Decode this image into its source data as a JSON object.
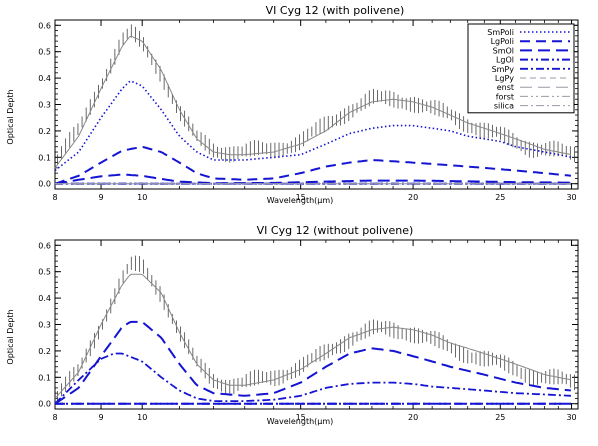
{
  "figure": {
    "panels": [
      {
        "title": "VI Cyg 12 (with polivene)",
        "xlabel": "Wavelength(μm)",
        "ylabel": "Optical Depth",
        "legend": [
          "SmPoli",
          "LgPoli",
          "SmOl",
          "LgOl",
          "SmPy",
          "LgPy",
          "enst",
          "forst",
          "silica"
        ]
      },
      {
        "title": "VI Cyg 12 (without polivene)",
        "xlabel": "Wavelength(μm)",
        "ylabel": "Optical Depth"
      }
    ]
  },
  "colors": {
    "axes": "#000000",
    "observed": "#444444",
    "model_total": "#888888",
    "components": "#1414d2",
    "minor_components": "#9a9aa8"
  },
  "chart_data": [
    {
      "type": "line",
      "title": "VI Cyg 12 (with polivene)",
      "xlabel": "Wavelength(μm)",
      "ylabel": "Optical Depth",
      "xscale": "log",
      "xlim": [
        8,
        30.5
      ],
      "ylim": [
        -0.02,
        0.62
      ],
      "xticks": [
        8,
        9,
        10,
        15,
        20,
        25,
        30
      ],
      "yticks": [
        0.0,
        0.1,
        0.2,
        0.3,
        0.4,
        0.5,
        0.6
      ],
      "grid": false,
      "legend_position": "top-right",
      "observed": {
        "x": [
          8,
          8.5,
          9,
          9.5,
          9.7,
          10,
          10.5,
          11,
          11.5,
          12,
          12.5,
          13,
          14,
          15,
          16,
          17,
          18,
          19,
          20,
          21,
          22,
          23,
          24,
          25,
          26,
          27,
          28,
          29,
          30
        ],
        "y": [
          0.08,
          0.2,
          0.38,
          0.54,
          0.57,
          0.53,
          0.42,
          0.27,
          0.17,
          0.13,
          0.12,
          0.12,
          0.13,
          0.16,
          0.22,
          0.28,
          0.32,
          0.32,
          0.31,
          0.28,
          0.26,
          0.23,
          0.2,
          0.18,
          0.16,
          0.14,
          0.13,
          0.12,
          0.11
        ],
        "error": 0.03
      },
      "series": [
        {
          "name": "total",
          "x": [
            8,
            8.5,
            9,
            9.5,
            9.7,
            10,
            10.5,
            11,
            11.5,
            12,
            12.5,
            13,
            14,
            15,
            16,
            17,
            18,
            19,
            20,
            21,
            22,
            23,
            24,
            25,
            26,
            27,
            28,
            29,
            30
          ],
          "values": [
            0.06,
            0.18,
            0.36,
            0.52,
            0.56,
            0.54,
            0.43,
            0.28,
            0.17,
            0.12,
            0.11,
            0.11,
            0.12,
            0.15,
            0.2,
            0.27,
            0.31,
            0.32,
            0.31,
            0.29,
            0.26,
            0.23,
            0.21,
            0.19,
            0.17,
            0.15,
            0.13,
            0.12,
            0.11
          ]
        },
        {
          "name": "SmPoli",
          "x": [
            8,
            8.5,
            9,
            9.5,
            9.7,
            10,
            10.5,
            11,
            11.5,
            12,
            12.5,
            13,
            14,
            15,
            16,
            17,
            18,
            19,
            20,
            21,
            22,
            23,
            24,
            25,
            26,
            27,
            28,
            29,
            30
          ],
          "values": [
            0.05,
            0.12,
            0.25,
            0.36,
            0.39,
            0.37,
            0.28,
            0.18,
            0.12,
            0.09,
            0.09,
            0.09,
            0.1,
            0.11,
            0.15,
            0.19,
            0.21,
            0.22,
            0.22,
            0.21,
            0.2,
            0.18,
            0.17,
            0.16,
            0.14,
            0.13,
            0.12,
            0.11,
            0.1
          ]
        },
        {
          "name": "LgPoli",
          "x": [
            8,
            8.5,
            9,
            9.5,
            10,
            10.5,
            11,
            11.5,
            12,
            13,
            14,
            15,
            16,
            17,
            18,
            19,
            20,
            22,
            24,
            26,
            28,
            30
          ],
          "values": [
            0.0,
            0.03,
            0.08,
            0.125,
            0.14,
            0.12,
            0.08,
            0.04,
            0.02,
            0.015,
            0.02,
            0.04,
            0.065,
            0.08,
            0.09,
            0.085,
            0.08,
            0.07,
            0.06,
            0.05,
            0.04,
            0.03
          ]
        },
        {
          "name": "SmOl",
          "x": [
            8,
            8.5,
            9,
            9.5,
            10,
            10.5,
            11,
            12,
            14,
            16,
            18,
            20,
            22,
            24,
            26,
            28,
            30
          ],
          "values": [
            0.0,
            0.015,
            0.028,
            0.035,
            0.03,
            0.018,
            0.008,
            0.002,
            0.003,
            0.008,
            0.012,
            0.012,
            0.01,
            0.008,
            0.006,
            0.005,
            0.004
          ]
        },
        {
          "name": "LgOl",
          "x": [
            8,
            30
          ],
          "values": [
            0.0,
            0.0
          ]
        },
        {
          "name": "SmPy",
          "x": [
            8,
            30
          ],
          "values": [
            0.0,
            0.0
          ]
        },
        {
          "name": "LgPy",
          "x": [
            8,
            30
          ],
          "values": [
            0.0,
            0.0
          ]
        },
        {
          "name": "enst",
          "x": [
            8,
            30
          ],
          "values": [
            0.0,
            0.0
          ]
        },
        {
          "name": "forst",
          "x": [
            8,
            30
          ],
          "values": [
            0.0,
            0.0
          ]
        },
        {
          "name": "silica",
          "x": [
            8,
            30
          ],
          "values": [
            0.0,
            0.0
          ]
        }
      ]
    },
    {
      "type": "line",
      "title": "VI Cyg 12 (without polivene)",
      "xlabel": "Wavelength(μm)",
      "ylabel": "Optical Depth",
      "xscale": "log",
      "xlim": [
        8,
        30.5
      ],
      "ylim": [
        -0.02,
        0.62
      ],
      "xticks": [
        8,
        9,
        10,
        15,
        20,
        25,
        30
      ],
      "yticks": [
        0.0,
        0.1,
        0.2,
        0.3,
        0.4,
        0.5,
        0.6
      ],
      "grid": false,
      "observed": {
        "x": [
          8,
          8.5,
          9,
          9.5,
          9.7,
          10,
          10.5,
          11,
          11.5,
          12,
          12.5,
          13,
          14,
          15,
          16,
          17,
          18,
          19,
          20,
          21,
          22,
          23,
          24,
          25,
          26,
          27,
          28,
          29,
          30
        ],
        "y": [
          0.02,
          0.12,
          0.3,
          0.47,
          0.52,
          0.52,
          0.42,
          0.27,
          0.15,
          0.09,
          0.07,
          0.08,
          0.1,
          0.14,
          0.19,
          0.25,
          0.28,
          0.28,
          0.27,
          0.24,
          0.21,
          0.19,
          0.17,
          0.15,
          0.13,
          0.11,
          0.1,
          0.09,
          0.08
        ],
        "error": 0.03
      },
      "series": [
        {
          "name": "total",
          "x": [
            8,
            8.5,
            9,
            9.5,
            9.7,
            10,
            10.5,
            11,
            11.5,
            12,
            12.5,
            13,
            14,
            15,
            16,
            17,
            18,
            19,
            20,
            21,
            22,
            23,
            24,
            25,
            26,
            27,
            28,
            29,
            30
          ],
          "values": [
            0.02,
            0.12,
            0.3,
            0.45,
            0.49,
            0.49,
            0.42,
            0.27,
            0.15,
            0.09,
            0.07,
            0.07,
            0.09,
            0.13,
            0.19,
            0.25,
            0.28,
            0.29,
            0.28,
            0.26,
            0.23,
            0.21,
            0.19,
            0.17,
            0.15,
            0.13,
            0.11,
            0.1,
            0.09
          ]
        },
        {
          "name": "SmOl",
          "x": [
            8,
            8.5,
            9,
            9.5,
            9.7,
            10,
            10.5,
            11,
            11.5,
            12,
            13,
            14,
            15,
            16,
            17,
            18,
            19,
            20,
            21,
            22,
            24,
            26,
            28,
            30
          ],
          "values": [
            0.0,
            0.06,
            0.18,
            0.29,
            0.31,
            0.31,
            0.25,
            0.15,
            0.07,
            0.04,
            0.03,
            0.04,
            0.08,
            0.14,
            0.19,
            0.21,
            0.2,
            0.18,
            0.16,
            0.14,
            0.11,
            0.08,
            0.06,
            0.05
          ]
        },
        {
          "name": "SmPy",
          "x": [
            8,
            8.5,
            9,
            9.3,
            9.5,
            10,
            10.5,
            11,
            11.5,
            12,
            13,
            14,
            15,
            16,
            17,
            18,
            19,
            20,
            21,
            22,
            24,
            26,
            28,
            30
          ],
          "values": [
            0.0,
            0.09,
            0.17,
            0.19,
            0.19,
            0.16,
            0.1,
            0.05,
            0.02,
            0.01,
            0.01,
            0.015,
            0.03,
            0.06,
            0.075,
            0.08,
            0.08,
            0.075,
            0.065,
            0.06,
            0.05,
            0.04,
            0.035,
            0.03
          ]
        },
        {
          "name": "LgPoli",
          "x": [
            8,
            30
          ],
          "values": [
            0.0,
            0.0
          ]
        },
        {
          "name": "LgOl",
          "x": [
            8,
            30
          ],
          "values": [
            0.0,
            0.0
          ]
        }
      ]
    }
  ]
}
